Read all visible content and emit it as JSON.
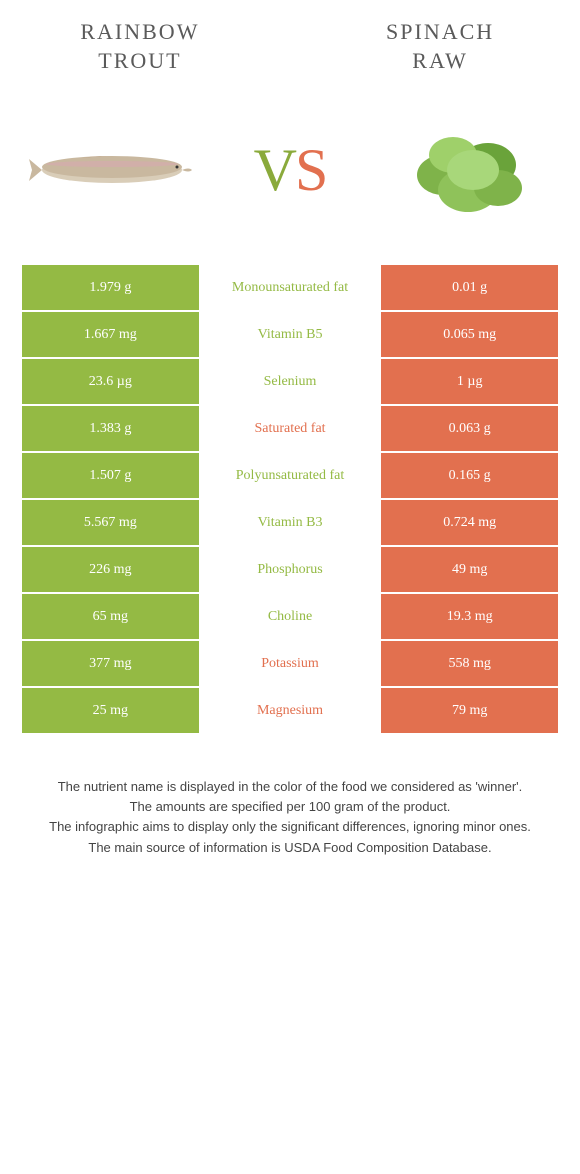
{
  "left_title_l1": "Rainbow",
  "left_title_l2": "trout",
  "right_title_l1": "Spinach",
  "right_title_l2": "raw",
  "vs_v": "V",
  "vs_s": "S",
  "colors": {
    "left": "#94ba44",
    "right": "#e2704f",
    "mid_left_text": "#94ba44",
    "mid_right_text": "#e2704f"
  },
  "rows": [
    {
      "left": "1.979 g",
      "label": "Monounsaturated fat",
      "right": "0.01 g",
      "winner": "left"
    },
    {
      "left": "1.667 mg",
      "label": "Vitamin B5",
      "right": "0.065 mg",
      "winner": "left"
    },
    {
      "left": "23.6 µg",
      "label": "Selenium",
      "right": "1 µg",
      "winner": "left"
    },
    {
      "left": "1.383 g",
      "label": "Saturated fat",
      "right": "0.063 g",
      "winner": "right"
    },
    {
      "left": "1.507 g",
      "label": "Polyunsaturated fat",
      "right": "0.165 g",
      "winner": "left"
    },
    {
      "left": "5.567 mg",
      "label": "Vitamin B3",
      "right": "0.724 mg",
      "winner": "left"
    },
    {
      "left": "226 mg",
      "label": "Phosphorus",
      "right": "49 mg",
      "winner": "left"
    },
    {
      "left": "65 mg",
      "label": "Choline",
      "right": "19.3 mg",
      "winner": "left"
    },
    {
      "left": "377 mg",
      "label": "Potassium",
      "right": "558 mg",
      "winner": "right"
    },
    {
      "left": "25 mg",
      "label": "Magnesium",
      "right": "79 mg",
      "winner": "right"
    }
  ],
  "footer": {
    "l1": "The nutrient name is displayed in the color of the food we considered as 'winner'.",
    "l2": "The amounts are specified per 100 gram of the product.",
    "l3": "The infographic aims to display only the significant differences, ignoring minor ones.",
    "l4": "The main source of information is USDA Food Composition Database."
  }
}
